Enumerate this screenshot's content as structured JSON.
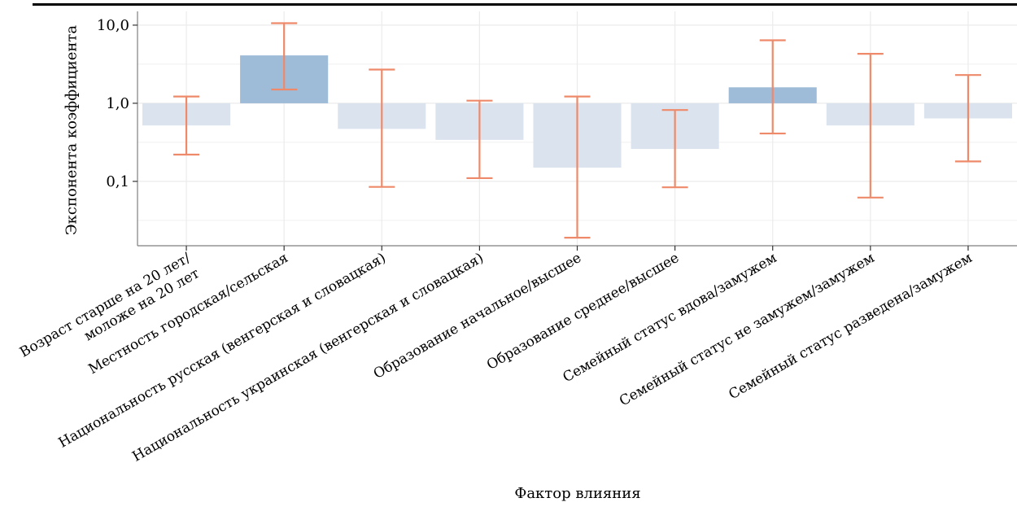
{
  "chart_data": {
    "type": "bar",
    "xlabel": "Фактор влияния",
    "ylabel": "Экспонента коэффициента",
    "yscale": "log",
    "ylim": [
      0.015,
      15
    ],
    "baseline": 1.0,
    "ytick_values": [
      0.1,
      1.0,
      10.0
    ],
    "ytick_labels": [
      "0,1",
      "1,0",
      "10,0"
    ],
    "categories": [
      [
        "Возраст старше на 20 лет/",
        "моложе на 20 лет"
      ],
      [
        "Местность городская/сельская"
      ],
      [
        "Национальность русская (венгерская и словацкая)"
      ],
      [
        "Национальность украинская (венгерская и словацкая)"
      ],
      [
        "Образование начальное/высшее"
      ],
      [
        "Образование среднее/высшее"
      ],
      [
        "Семейный статус вдова/замужем"
      ],
      [
        "Семейный статус не замужем/замужем"
      ],
      [
        "Семейный статус разведена/замужем"
      ]
    ],
    "values": [
      0.52,
      4.1,
      0.47,
      0.34,
      0.15,
      0.26,
      1.6,
      0.52,
      0.64
    ],
    "error_low": [
      0.22,
      1.5,
      0.085,
      0.11,
      0.019,
      0.084,
      0.41,
      0.062,
      0.18
    ],
    "error_high": [
      1.22,
      10.6,
      2.7,
      1.08,
      1.22,
      0.82,
      6.4,
      4.3,
      2.3
    ],
    "colors": {
      "above_one": "#9ebbd8",
      "below_one": "#dbe3ee",
      "error_bar": "#ee8a6a",
      "grid": "#ebebeb",
      "axis": "#7f7f7f"
    },
    "grid": true
  }
}
